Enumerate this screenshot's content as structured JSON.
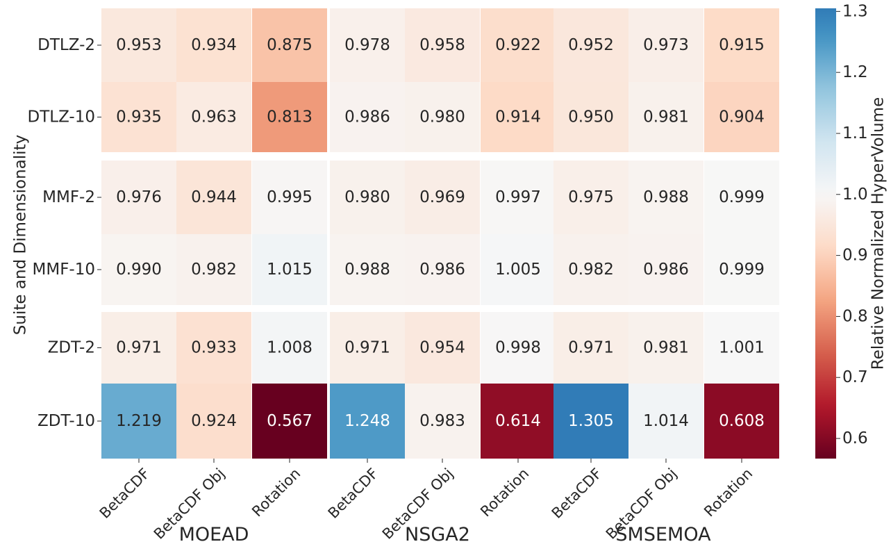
{
  "chart_data": {
    "type": "heatmap",
    "ylabel": "Suite and Dimensionality",
    "row_labels": [
      "DTLZ-2",
      "DTLZ-10",
      "MMF-2",
      "MMF-10",
      "ZDT-2",
      "ZDT-10"
    ],
    "column_groups": [
      {
        "name": "MOEAD",
        "columns": [
          "BetaCDF",
          "BetaCDF Obj",
          "Rotation"
        ]
      },
      {
        "name": "NSGA2",
        "columns": [
          "BetaCDF",
          "BetaCDF Obj",
          "Rotation"
        ]
      },
      {
        "name": "SMSEMOA",
        "columns": [
          "BetaCDF",
          "BetaCDF Obj",
          "Rotation"
        ]
      }
    ],
    "row_groups": [
      [
        "DTLZ-2",
        "DTLZ-10"
      ],
      [
        "MMF-2",
        "MMF-10"
      ],
      [
        "ZDT-2",
        "ZDT-10"
      ]
    ],
    "values": [
      [
        0.953,
        0.934,
        0.875,
        0.978,
        0.958,
        0.922,
        0.952,
        0.973,
        0.915
      ],
      [
        0.935,
        0.963,
        0.813,
        0.986,
        0.98,
        0.914,
        0.95,
        0.981,
        0.904
      ],
      [
        0.976,
        0.944,
        0.995,
        0.98,
        0.969,
        0.997,
        0.975,
        0.988,
        0.999
      ],
      [
        0.99,
        0.982,
        1.015,
        0.988,
        0.986,
        1.005,
        0.982,
        0.986,
        0.999
      ],
      [
        0.971,
        0.933,
        1.008,
        0.971,
        0.954,
        0.998,
        0.971,
        0.981,
        1.001
      ],
      [
        1.219,
        0.924,
        0.567,
        1.248,
        0.983,
        0.614,
        1.305,
        1.014,
        0.608
      ]
    ],
    "value_labels": [
      [
        "0.953",
        "0.934",
        "0.875",
        "0.978",
        "0.958",
        "0.922",
        "0.952",
        "0.973",
        "0.915"
      ],
      [
        "0.935",
        "0.963",
        "0.813",
        "0.986",
        "0.980",
        "0.914",
        "0.950",
        "0.981",
        "0.904"
      ],
      [
        "0.976",
        "0.944",
        "0.995",
        "0.980",
        "0.969",
        "0.997",
        "0.975",
        "0.988",
        "0.999"
      ],
      [
        "0.990",
        "0.982",
        "1.015",
        "0.988",
        "0.986",
        "1.005",
        "0.982",
        "0.986",
        "0.999"
      ],
      [
        "0.971",
        "0.933",
        "1.008",
        "0.971",
        "0.954",
        "0.998",
        "0.971",
        "0.981",
        "1.001"
      ],
      [
        "1.219",
        "0.924",
        "0.567",
        "1.248",
        "0.983",
        "0.614",
        "1.305",
        "1.014",
        "0.608"
      ]
    ],
    "colorbar": {
      "label": "Relative Normalized HyperVolume",
      "range": [
        0.567,
        1.305
      ],
      "center": 1.0,
      "colormap": "RdBu",
      "ticks": [
        0.6,
        0.7,
        0.8,
        0.9,
        1.0,
        1.1,
        1.2,
        1.3
      ],
      "tick_labels": [
        "0.6",
        "0.7",
        "0.8",
        "0.9",
        "1.0",
        "1.1",
        "1.2",
        "1.3"
      ]
    },
    "colors": {
      "low": "#67001f",
      "mid": "#f7f7f7",
      "high": "#2166ac",
      "dark_text": "#262626",
      "light_text": "#ffffff"
    }
  }
}
